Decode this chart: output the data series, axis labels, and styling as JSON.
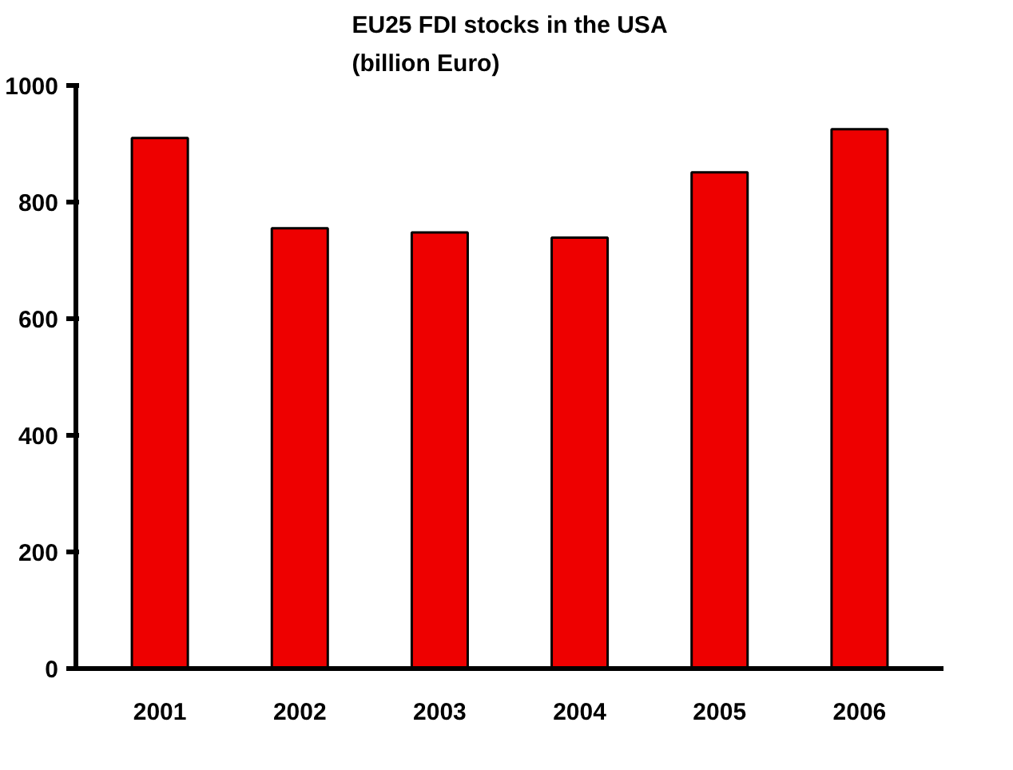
{
  "chart_data": {
    "type": "bar",
    "title": "EU25 FDI stocks in the USA\n(billion Euro)",
    "categories": [
      "2001",
      "2002",
      "2003",
      "2004",
      "2005",
      "2006"
    ],
    "values": [
      910,
      755,
      748,
      739,
      851,
      925
    ],
    "color": "#ee0000",
    "ylim": [
      0,
      1000
    ],
    "yticks": [
      0,
      200,
      400,
      600,
      800,
      1000
    ],
    "grid": false
  }
}
